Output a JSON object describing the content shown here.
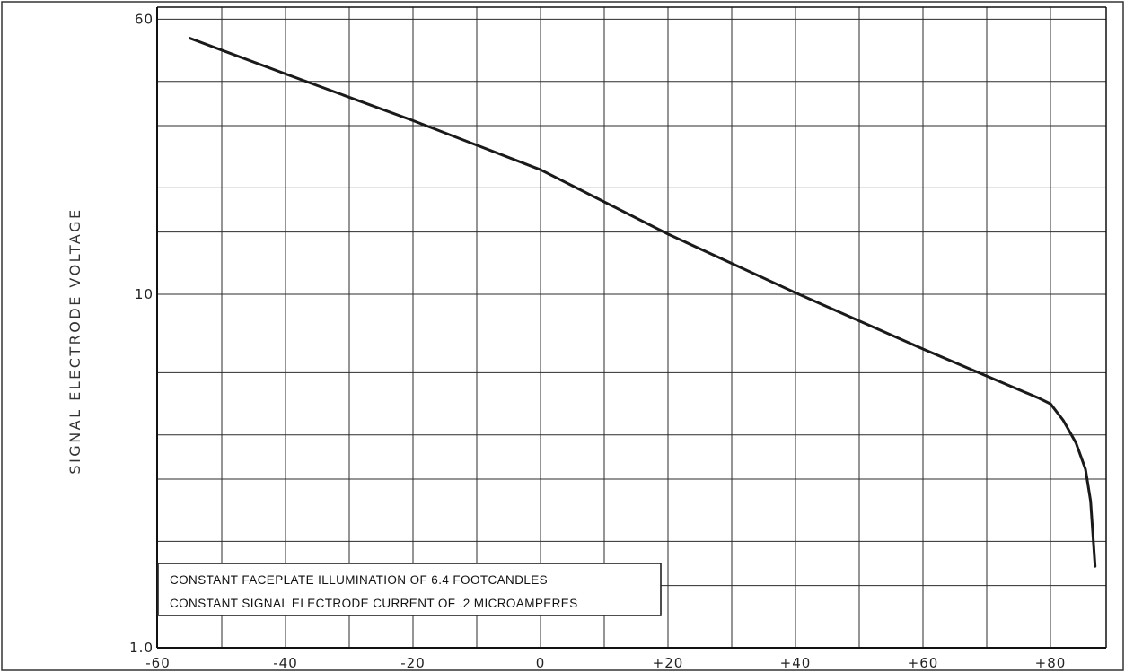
{
  "chart_data": {
    "type": "line",
    "title": "",
    "xlabel": "",
    "ylabel": "SIGNAL ELECTRODE VOLTAGE",
    "xlim": [
      -60,
      88
    ],
    "ylim": [
      1,
      60
    ],
    "yscale": "log",
    "grid": true,
    "x_ticks": [
      "-60",
      "-40",
      "-20",
      "0",
      "+20",
      "+40",
      "+60",
      "+80"
    ],
    "x_tick_values": [
      -60,
      -40,
      -20,
      0,
      20,
      40,
      60,
      80
    ],
    "y_ticks": [
      "1.0",
      "10",
      "60"
    ],
    "y_tick_values": [
      1,
      10,
      60
    ],
    "series": [
      {
        "color": "#1a1a1a",
        "x": [
          -55,
          -40,
          -20,
          0,
          20,
          40,
          60,
          78,
          80,
          82,
          84,
          85.5,
          86.3,
          87
        ],
        "y": [
          53,
          42,
          31,
          22.5,
          14.8,
          10.1,
          7,
          5.1,
          4.9,
          4.4,
          3.8,
          3.2,
          2.6,
          1.7
        ]
      }
    ],
    "annotations": [
      "CONSTANT FACEPLATE ILLUMINATION OF 6.4 FOOTCANDLES",
      "CONSTANT SIGNAL ELECTRODE CURRENT OF .2 MICROAMPERES"
    ]
  }
}
